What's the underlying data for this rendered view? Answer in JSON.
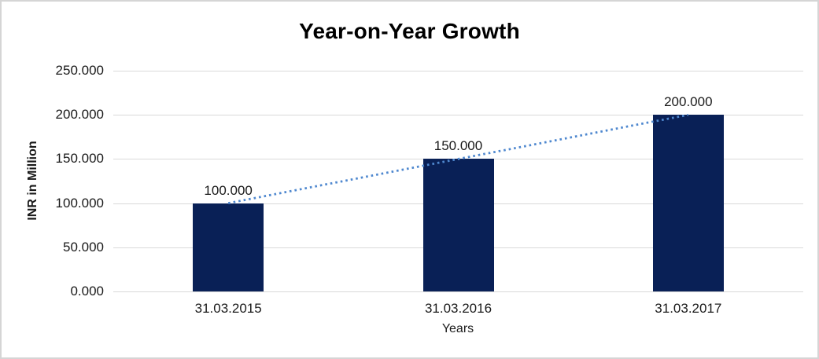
{
  "chart_data": {
    "type": "bar",
    "title": "Year-on-Year Growth",
    "xlabel": "Years",
    "ylabel": "INR in Million",
    "categories": [
      "31.03.2015",
      "31.03.2016",
      "31.03.2017"
    ],
    "values": [
      100,
      150,
      200
    ],
    "value_labels": [
      "100.000",
      "150.000",
      "200.000"
    ],
    "ylim": [
      0,
      250
    ],
    "ytick_values": [
      0,
      50,
      100,
      150,
      200,
      250
    ],
    "ytick_labels": [
      "0.000",
      "50.000",
      "100.000",
      "150.000",
      "200.000",
      "250.000"
    ],
    "grid": "horizontal",
    "legend": "none",
    "trendline": {
      "style": "dotted-linear",
      "from_category": "31.03.2015",
      "to_category": "31.03.2017",
      "from_value": 100,
      "to_value": 200,
      "color": "#4F88CF"
    },
    "colors": {
      "bar": "#092056",
      "gridline": "#D9D9D9",
      "chart_border": "#D5D5D5",
      "title_text": "#000000",
      "label_text": "#1A1A1A",
      "background": "#FFFFFF"
    }
  }
}
